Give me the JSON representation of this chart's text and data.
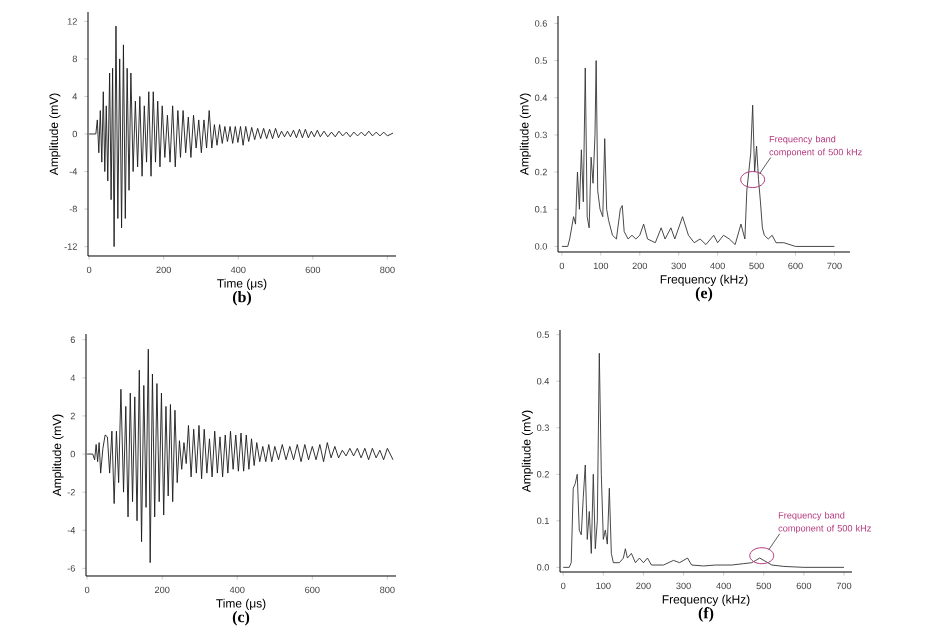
{
  "chart_data": [
    {
      "type": "line",
      "title": "(b)",
      "xlabel": "Time (μs)",
      "ylabel": "Amplitude (mV)",
      "color": "#1a1a1a",
      "xlim": [
        -3,
        823
      ],
      "ylim": [
        -13,
        13
      ],
      "xticks": [
        0,
        200,
        400,
        600,
        800
      ],
      "yticks": [
        -12,
        -8,
        -4,
        0,
        4,
        8,
        12
      ],
      "x": [
        0,
        18,
        22,
        26,
        30,
        34,
        38,
        42,
        46,
        50,
        55,
        59,
        63,
        67,
        72,
        77,
        82,
        87,
        92,
        97,
        102,
        107,
        112,
        118,
        124,
        130,
        136,
        142,
        148,
        154,
        160,
        166,
        172,
        178,
        184,
        190,
        196,
        203,
        210,
        217,
        224,
        231,
        238,
        245,
        252,
        259,
        266,
        273,
        280,
        287,
        294,
        301,
        308,
        315,
        322,
        329,
        336,
        343,
        350,
        357,
        364,
        371,
        378,
        385,
        392,
        399,
        406,
        413,
        420,
        428,
        436,
        444,
        452,
        460,
        468,
        476,
        484,
        492,
        500,
        508,
        516,
        524,
        532,
        540,
        548,
        556,
        564,
        572,
        580,
        588,
        596,
        604,
        612,
        620,
        630,
        640,
        650,
        660,
        670,
        680,
        690,
        700,
        710,
        720,
        730,
        740,
        750,
        760,
        770,
        780,
        790,
        800,
        815
      ],
      "values": [
        0,
        0,
        1.5,
        -2,
        2.5,
        -3,
        4.5,
        -4,
        3,
        -5,
        6.5,
        -7,
        7,
        -12,
        11.5,
        -9,
        8,
        -10,
        9.5,
        -9,
        7,
        -6,
        6.5,
        -4,
        3.5,
        -3.5,
        4,
        -4.5,
        3,
        -3,
        4.5,
        -4.5,
        4.5,
        -3,
        3.5,
        -3.5,
        3,
        -2.5,
        2,
        -3,
        3,
        -3.5,
        2.5,
        -2.5,
        2.5,
        -2,
        1.8,
        -2.5,
        2,
        -1.5,
        1.5,
        -2,
        1.5,
        -1.5,
        2.5,
        -1.5,
        1,
        -1.2,
        1,
        -1,
        0.8,
        -0.8,
        0.8,
        -1,
        0.8,
        -0.9,
        0.8,
        -1.2,
        0.8,
        -0.8,
        0.7,
        -0.6,
        0.6,
        -0.5,
        0.6,
        -0.5,
        0.5,
        -0.5,
        0.6,
        -0.4,
        0.3,
        -0.3,
        0.3,
        -0.3,
        0.4,
        -0.4,
        0.5,
        -0.4,
        0.5,
        -0.4,
        0.3,
        -0.3,
        0.4,
        -0.3,
        0.3,
        -0.3,
        0.2,
        -0.3,
        0.3,
        -0.2,
        0.2,
        -0.3,
        0.2,
        -0.2,
        0.2,
        -0.2,
        0.3,
        -0.2,
        0.2,
        -0.2,
        0.2,
        -0.2,
        0.1
      ]
    },
    {
      "type": "line",
      "title": "(e)",
      "xlabel": "Frequency (kHz)",
      "ylabel": "Amplitude (mV)",
      "color": "#333333",
      "xlim": [
        -10,
        740
      ],
      "ylim": [
        -0.015,
        0.62
      ],
      "xticks": [
        0,
        100,
        200,
        300,
        400,
        500,
        600,
        700
      ],
      "yticks": [
        {
          "value": 0,
          "label": "0.0"
        },
        0.1,
        0.2,
        0.3,
        0.4,
        0.5,
        0.6
      ],
      "x": [
        0,
        15,
        20,
        30,
        35,
        40,
        45,
        50,
        55,
        60,
        65,
        70,
        75,
        80,
        85,
        88,
        92,
        98,
        105,
        110,
        115,
        120,
        125,
        130,
        140,
        150,
        155,
        160,
        170,
        180,
        190,
        200,
        210,
        220,
        240,
        255,
        265,
        280,
        290,
        310,
        325,
        340,
        355,
        370,
        390,
        400,
        415,
        430,
        445,
        460,
        470,
        475,
        480,
        485,
        490,
        495,
        500,
        505,
        510,
        515,
        520,
        530,
        540,
        550,
        570,
        600,
        650,
        700
      ],
      "values": [
        0,
        0,
        0.02,
        0.08,
        0.06,
        0.2,
        0.1,
        0.26,
        0.12,
        0.48,
        0.08,
        0.05,
        0.24,
        0.17,
        0.3,
        0.5,
        0.15,
        0.1,
        0.08,
        0.29,
        0.1,
        0.07,
        0.05,
        0.03,
        0.02,
        0.1,
        0.11,
        0.04,
        0.02,
        0.03,
        0.02,
        0.03,
        0.06,
        0.02,
        0.01,
        0.05,
        0.02,
        0.05,
        0.02,
        0.08,
        0.03,
        0.01,
        0.02,
        0.005,
        0.03,
        0.01,
        0.03,
        0.02,
        0.005,
        0.06,
        0.02,
        0.15,
        0.2,
        0.25,
        0.38,
        0.2,
        0.27,
        0.18,
        0.12,
        0.05,
        0.03,
        0.02,
        0.03,
        0.01,
        0.01,
        0,
        0,
        0
      ],
      "annotations": [
        {
          "text": "Frequency band component of 500 kHz",
          "x": 490,
          "y": 0.18
        }
      ]
    },
    {
      "type": "line",
      "title": "(c)",
      "xlabel": "Time (μs)",
      "ylabel": "Amplitude (mV)",
      "color": "#1a1a1a",
      "xlim": [
        -3,
        823
      ],
      "ylim": [
        -6.4,
        6.3
      ],
      "xticks": [
        0,
        200,
        400,
        600,
        800
      ],
      "yticks": [
        -6,
        -4,
        -2,
        0,
        2,
        4,
        6
      ],
      "x": [
        0,
        15,
        20,
        24,
        28,
        32,
        36,
        42,
        48,
        54,
        60,
        66,
        72,
        78,
        84,
        90,
        97,
        103,
        109,
        115,
        121,
        127,
        133,
        139,
        145,
        151,
        157,
        163,
        168,
        174,
        180,
        186,
        192,
        198,
        204,
        210,
        216,
        222,
        228,
        234,
        240,
        246,
        252,
        258,
        264,
        270,
        277,
        284,
        291,
        298,
        305,
        312,
        319,
        326,
        333,
        340,
        347,
        354,
        361,
        368,
        375,
        382,
        389,
        396,
        403,
        410,
        417,
        424,
        431,
        438,
        445,
        452,
        460,
        468,
        476,
        484,
        492,
        500,
        510,
        520,
        530,
        540,
        550,
        560,
        570,
        580,
        590,
        600,
        610,
        620,
        630,
        640,
        650,
        660,
        670,
        680,
        690,
        700,
        710,
        720,
        730,
        740,
        750,
        760,
        770,
        780,
        790,
        800,
        815
      ],
      "values": [
        0,
        0,
        -0.3,
        0.5,
        -0.4,
        0.6,
        -1,
        0.3,
        1,
        0.9,
        -1,
        1.2,
        -2.6,
        1.2,
        -1.5,
        3.4,
        -2,
        2.5,
        -3.3,
        3.2,
        -2.5,
        3,
        -3.5,
        4.4,
        -4.6,
        3.6,
        -2.8,
        5.5,
        -5.7,
        4.2,
        -3.3,
        3.7,
        -2.5,
        3.2,
        -3.2,
        2.5,
        -2.2,
        2.6,
        -2.5,
        2.3,
        -1.5,
        0.7,
        -0.8,
        0.6,
        -0.5,
        1.5,
        -1.2,
        1.3,
        -1,
        1.5,
        -1.3,
        1.3,
        -1,
        0.8,
        -1.2,
        1.2,
        -1,
        0.9,
        -1.2,
        1,
        -1,
        1.2,
        -0.8,
        1,
        -0.9,
        1.1,
        -0.9,
        1,
        -0.8,
        0.8,
        -0.6,
        0.6,
        -0.4,
        0.4,
        -0.4,
        0.5,
        -0.4,
        0.4,
        -0.3,
        0.5,
        -0.3,
        0.4,
        -0.3,
        0.5,
        -0.4,
        0.5,
        -0.3,
        0.4,
        -0.3,
        0.5,
        -0.4,
        0.6,
        -0.2,
        0.4,
        -0.2,
        0.2,
        -0.1,
        0.3,
        -0.1,
        0.3,
        -0.2,
        0.3,
        -0.3,
        0.3,
        -0.2,
        0.2,
        -0.3,
        0.3,
        -0.3
      ]
    },
    {
      "type": "line",
      "title": "(f)",
      "xlabel": "Frequency (kHz)",
      "ylabel": "Amplitude (mV)",
      "color": "#333333",
      "xlim": [
        -8,
        720
      ],
      "ylim": [
        -0.01,
        0.51
      ],
      "xticks": [
        0,
        100,
        200,
        300,
        400,
        500,
        600,
        700
      ],
      "yticks": [
        {
          "value": 0,
          "label": "0.0"
        },
        0.1,
        0.2,
        0.3,
        0.4,
        0.5
      ],
      "x": [
        0,
        15,
        20,
        25,
        30,
        35,
        40,
        45,
        50,
        55,
        60,
        65,
        70,
        75,
        80,
        85,
        90,
        95,
        100,
        105,
        110,
        115,
        120,
        125,
        140,
        150,
        155,
        160,
        170,
        180,
        190,
        200,
        210,
        220,
        250,
        275,
        290,
        310,
        320,
        350,
        380,
        420,
        450,
        470,
        480,
        490,
        500,
        510,
        520,
        550,
        600,
        700
      ],
      "values": [
        0,
        0,
        0.01,
        0.17,
        0.18,
        0.2,
        0.08,
        0.07,
        0.15,
        0.22,
        0.06,
        0.12,
        0.03,
        0.2,
        0.04,
        0.1,
        0.46,
        0.2,
        0.06,
        0.08,
        0.05,
        0.17,
        0.03,
        0.01,
        0.01,
        0.02,
        0.04,
        0.02,
        0.03,
        0.01,
        0.02,
        0.01,
        0.02,
        0.005,
        0.005,
        0.015,
        0.01,
        0.02,
        0.005,
        0.003,
        0.005,
        0.005,
        0.008,
        0.01,
        0.015,
        0.02,
        0.015,
        0.01,
        0.005,
        0.002,
        0,
        0
      ],
      "annotations": [
        {
          "text": "Frequency band component of 500 kHz",
          "x": 495,
          "y": 0.025
        }
      ]
    }
  ]
}
